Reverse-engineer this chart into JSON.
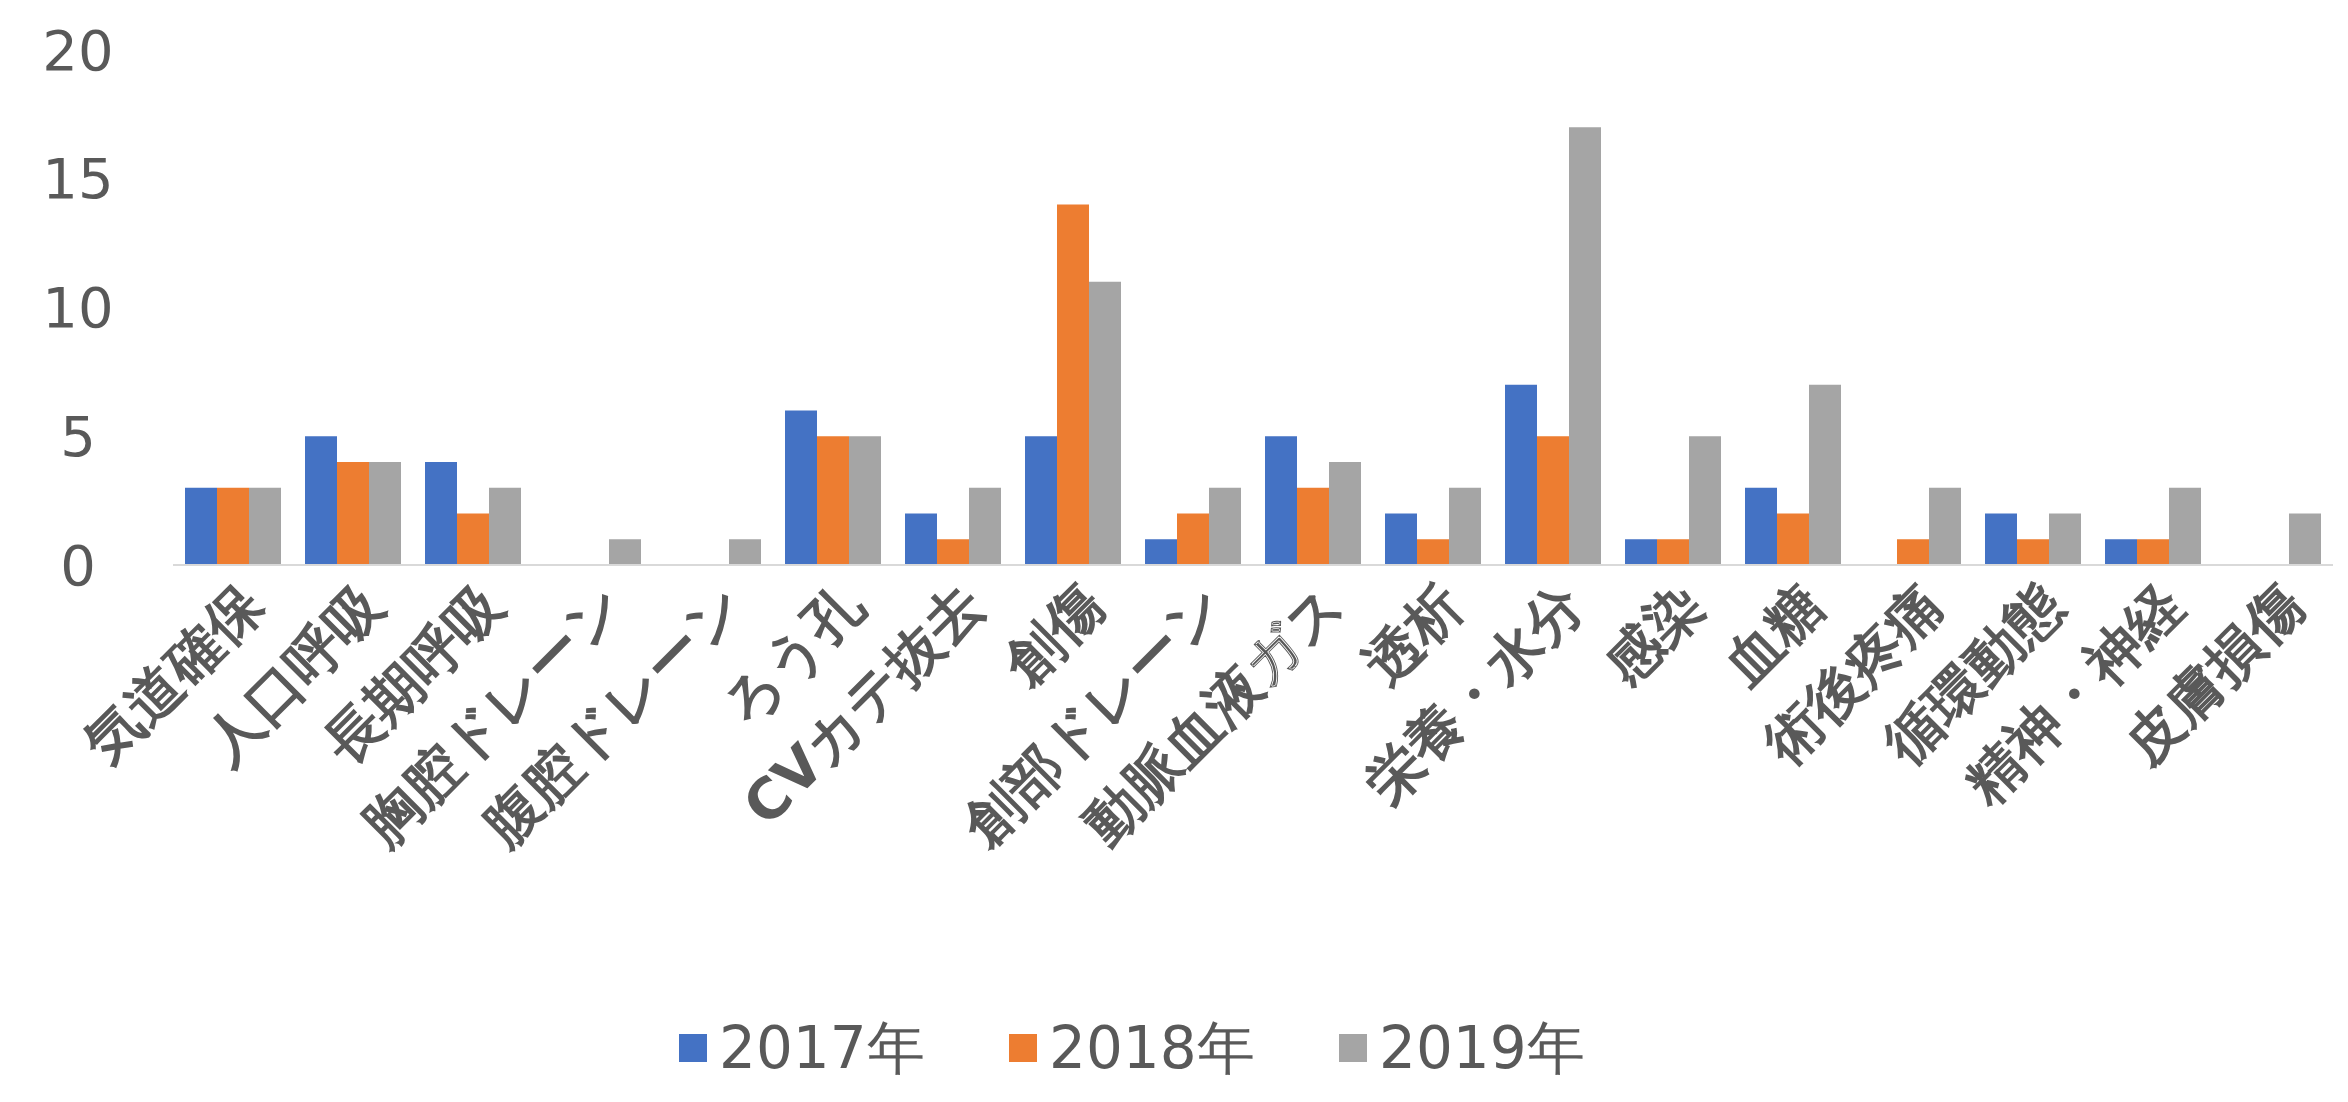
{
  "chart_data": {
    "type": "bar",
    "categories": [
      "気道確保",
      "人口呼吸",
      "長期呼吸",
      "胸腔ドレーン",
      "腹腔ドレーン",
      "ろう孔",
      "CVカテ抜去",
      "創傷",
      "創部ドレーン",
      "動脈血液ガス",
      "透析",
      "栄養・水分",
      "感染",
      "血糖",
      "術後疼痛",
      "循環動態",
      "精神・神経",
      "皮膚損傷"
    ],
    "series": [
      {
        "name": "2017年",
        "color": "#4472c4",
        "values": [
          3,
          5,
          4,
          0,
          0,
          6,
          2,
          5,
          1,
          5,
          2,
          7,
          1,
          3,
          0,
          2,
          1,
          0
        ]
      },
      {
        "name": "2018年",
        "color": "#ed7d31",
        "values": [
          3,
          4,
          2,
          0,
          0,
          5,
          1,
          14,
          2,
          3,
          1,
          5,
          1,
          2,
          1,
          1,
          1,
          0
        ]
      },
      {
        "name": "2019年",
        "color": "#a5a5a5",
        "values": [
          3,
          4,
          3,
          1,
          1,
          5,
          3,
          11,
          3,
          4,
          3,
          17,
          5,
          7,
          3,
          2,
          3,
          2
        ]
      }
    ],
    "ylim": [
      0,
      20
    ],
    "yticks": [
      0,
      5,
      10,
      15,
      20
    ],
    "grid": false,
    "legend": "bottom"
  }
}
